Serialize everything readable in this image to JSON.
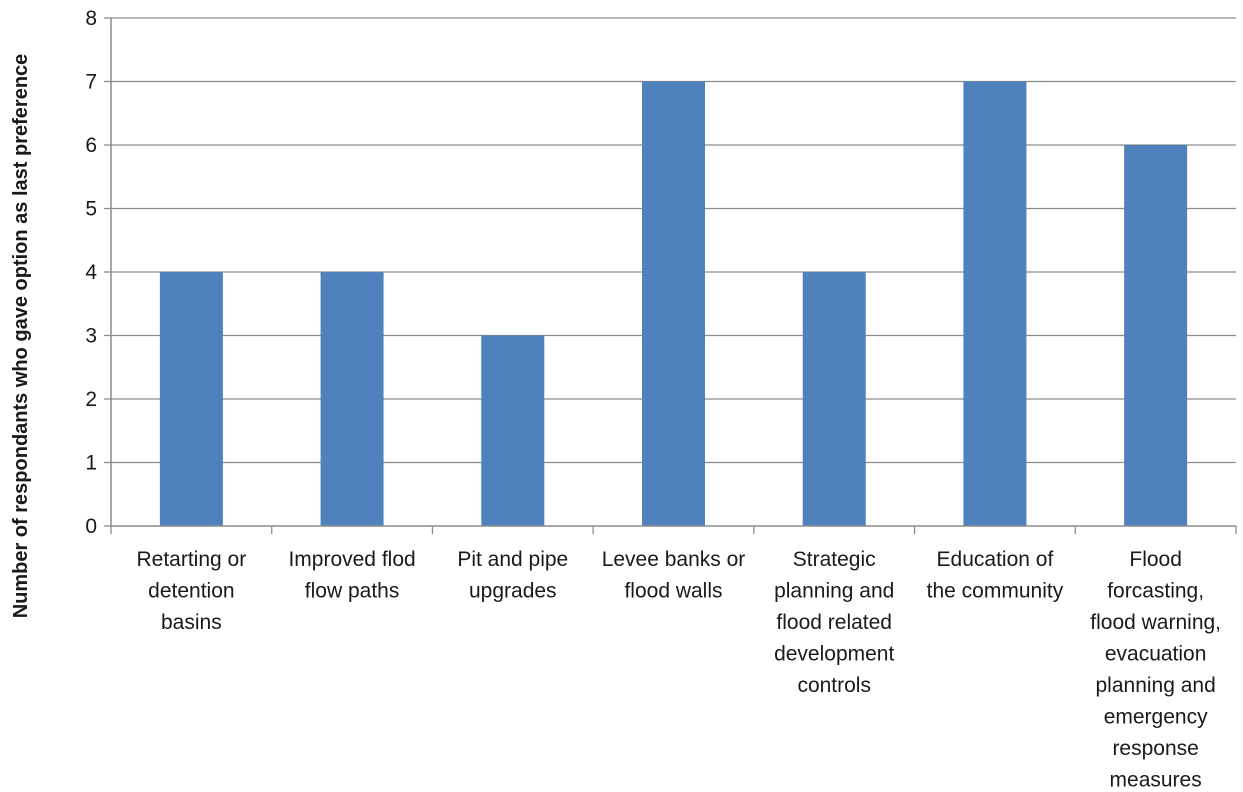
{
  "chart_data": {
    "type": "bar",
    "title": "",
    "xlabel": "",
    "ylabel": "Number of respondants who gave option as last preference",
    "ylim": [
      0,
      8
    ],
    "yticks": [
      0,
      1,
      2,
      3,
      4,
      5,
      6,
      7,
      8
    ],
    "grid": true,
    "legend": "none",
    "bar_color": "#4f81bd",
    "categories": [
      [
        "Retarting or",
        "detention",
        "basins"
      ],
      [
        "Improved flod",
        "flow paths"
      ],
      [
        "Pit and pipe",
        "upgrades"
      ],
      [
        "Levee banks or",
        "flood walls"
      ],
      [
        "Strategic",
        "planning and",
        "flood related",
        "development",
        "controls"
      ],
      [
        "Education of",
        "the community"
      ],
      [
        "Flood",
        "forcasting,",
        "flood warning,",
        "evacuation",
        "planning and",
        "emergency",
        "response",
        "measures"
      ]
    ],
    "values": [
      4,
      4,
      3,
      7,
      4,
      7,
      6
    ]
  }
}
